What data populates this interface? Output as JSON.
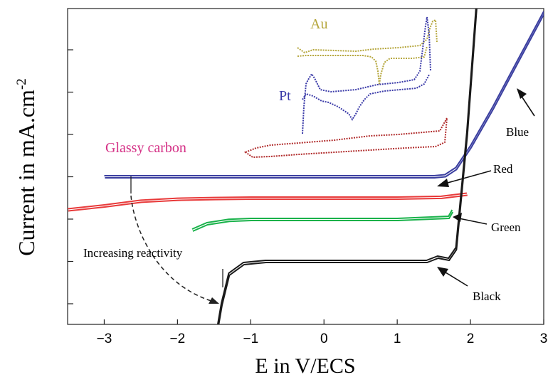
{
  "chart_data": {
    "type": "line",
    "title": "",
    "xlabel": "E in V/ECS",
    "ylabel_main": "Current in mA.cm",
    "ylabel_sup": "-2",
    "xlim": [
      -3.5,
      3
    ],
    "xticks": [
      -3,
      -2,
      -1,
      0,
      1,
      2,
      3
    ],
    "xtick_labels": [
      "−3",
      "−2",
      "−1",
      "0",
      "1",
      "2",
      "3"
    ],
    "y_ticks_unlabeled_count": 7,
    "grid": false,
    "series": [
      {
        "name": "Blue",
        "color": "#3b3fa0",
        "x": [
          -3.0,
          0.5,
          1.5,
          1.65,
          1.8,
          2.0,
          2.3,
          2.6,
          3.0
        ],
        "y_rel": [
          0,
          0,
          0,
          0.02,
          0.15,
          0.55,
          1.25,
          2.0,
          3.0
        ]
      },
      {
        "name": "Red",
        "color": "#e83a3a",
        "x": [
          -3.5,
          -3.0,
          -2.5,
          -2.0,
          -1.5,
          -1.0,
          0,
          1.0,
          1.6,
          1.95
        ],
        "y_rel": [
          -0.3,
          -0.2,
          -0.08,
          -0.03,
          -0.01,
          0,
          0,
          0,
          0.02,
          0.1
        ]
      },
      {
        "name": "Green",
        "color": "#19b24a",
        "x": [
          -1.8,
          -1.6,
          -1.3,
          -1.0,
          0,
          1.0,
          1.7,
          1.75
        ],
        "y_rel": [
          -0.25,
          -0.1,
          -0.02,
          0,
          0,
          0,
          0.05,
          0.2
        ]
      },
      {
        "name": "Black",
        "color": "#1a1a1a",
        "x": [
          -1.5,
          -1.4,
          -1.3,
          -1.1,
          -0.8,
          0,
          1.0,
          1.4,
          1.55,
          1.7,
          1.8,
          1.95,
          2.1
        ],
        "y_rel": [
          -2.0,
          -1.0,
          -0.3,
          -0.05,
          0,
          0,
          0,
          0,
          0.1,
          0.05,
          0.3,
          3.0,
          6.5
        ]
      }
    ],
    "inset_labels": [
      "Au",
      "Pt",
      "Glassy carbon"
    ],
    "annotations": [
      "Blue",
      "Red",
      "Green",
      "Black",
      "Increasing reactivity"
    ]
  }
}
